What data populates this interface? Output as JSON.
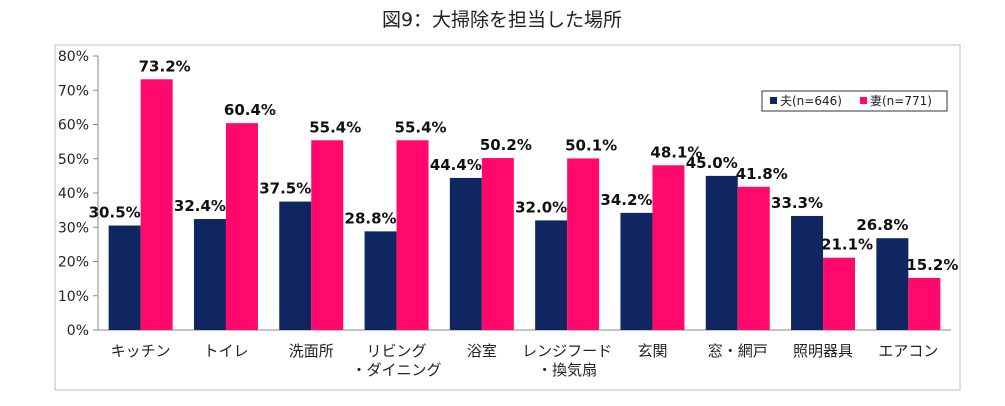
{
  "chart_data": {
    "type": "bar",
    "title": "図9：大掃除を担当した場所",
    "categories": [
      [
        "キッチン"
      ],
      [
        "トイレ"
      ],
      [
        "洗面所"
      ],
      [
        "リビング",
        "・ダイニング"
      ],
      [
        "浴室"
      ],
      [
        "レンジフード",
        "・換気扇"
      ],
      [
        "玄関"
      ],
      [
        "窓・網戸"
      ],
      [
        "照明器具"
      ],
      [
        "エアコン"
      ]
    ],
    "series": [
      {
        "name": "夫(n=646)",
        "color": "#0f2660",
        "values": [
          30.5,
          32.4,
          37.5,
          28.8,
          44.4,
          32.0,
          34.2,
          45.0,
          33.3,
          26.8
        ],
        "labels": [
          "30.5%",
          "32.4%",
          "37.5%",
          "28.8%",
          "44.4%",
          "32.0%",
          "34.2%",
          "45.0%",
          "33.3%",
          "26.8%"
        ]
      },
      {
        "name": "妻(n=771)",
        "color": "#ff0a6c",
        "values": [
          73.2,
          60.4,
          55.4,
          55.4,
          50.2,
          50.1,
          48.1,
          41.8,
          21.1,
          15.2
        ],
        "labels": [
          "73.2%",
          "60.4%",
          "55.4%",
          "55.4%",
          "50.2%",
          "50.1%",
          "48.1%",
          "41.8%",
          "21.1%",
          "15.2%"
        ]
      }
    ],
    "yticks": [
      "0%",
      "10%",
      "20%",
      "30%",
      "40%",
      "50%",
      "60%",
      "70%",
      "80%"
    ],
    "ylim": [
      0,
      80
    ],
    "xlabel": "",
    "ylabel": "",
    "legend_position": "top-right",
    "grid": false
  }
}
